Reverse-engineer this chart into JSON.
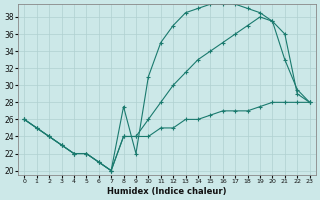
{
  "xlabel": "Humidex (Indice chaleur)",
  "bg_color": "#cce8e8",
  "line_color": "#1a7a6e",
  "xlim": [
    -0.5,
    23.5
  ],
  "ylim": [
    19.5,
    39.5
  ],
  "yticks": [
    20,
    22,
    24,
    26,
    28,
    30,
    32,
    34,
    36,
    38
  ],
  "xticks": [
    0,
    1,
    2,
    3,
    4,
    5,
    6,
    7,
    8,
    9,
    10,
    11,
    12,
    13,
    14,
    15,
    16,
    17,
    18,
    19,
    20,
    21,
    22,
    23
  ],
  "curve1_x": [
    0,
    1,
    2,
    3,
    4,
    5,
    6,
    7,
    8,
    9,
    10,
    11,
    12,
    13,
    14,
    15,
    16,
    17,
    18,
    19,
    20,
    21,
    22,
    23
  ],
  "curve1_y": [
    26,
    25,
    24,
    23,
    22,
    22,
    21,
    20,
    27.5,
    22,
    31,
    35,
    37,
    38.5,
    39,
    39.5,
    39.5,
    39.5,
    39,
    38.5,
    37.5,
    33,
    29.5,
    28
  ],
  "curve2_x": [
    0,
    1,
    2,
    3,
    4,
    5,
    6,
    7,
    8,
    9,
    10,
    11,
    12,
    13,
    14,
    15,
    16,
    17,
    18,
    19,
    20,
    21,
    22,
    23
  ],
  "curve2_y": [
    26,
    25,
    24,
    23,
    22,
    22,
    21,
    20,
    24,
    24,
    26,
    28,
    30,
    31.5,
    33,
    34,
    35,
    36,
    37,
    38,
    37.5,
    36,
    29,
    28
  ],
  "curve3_x": [
    0,
    1,
    2,
    3,
    4,
    5,
    6,
    7,
    8,
    9,
    10,
    11,
    12,
    13,
    14,
    15,
    16,
    17,
    18,
    19,
    20,
    21,
    22,
    23
  ],
  "curve3_y": [
    26,
    25,
    24,
    23,
    22,
    22,
    21,
    20,
    24,
    24,
    24,
    25,
    25,
    26,
    26,
    26.5,
    27,
    27,
    27,
    27.5,
    28,
    28,
    28,
    28
  ]
}
